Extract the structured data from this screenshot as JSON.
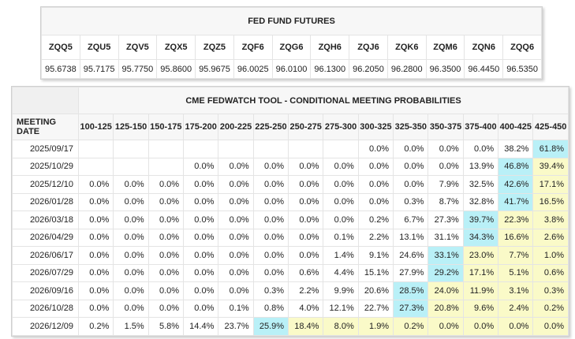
{
  "futures": {
    "title": "FED FUND FUTURES",
    "symbols": [
      "ZQQ5",
      "ZQU5",
      "ZQV5",
      "ZQX5",
      "ZQZ5",
      "ZQF6",
      "ZQG6",
      "ZQH6",
      "ZQJ6",
      "ZQK6",
      "ZQM6",
      "ZQN6",
      "ZQQ6"
    ],
    "prices": [
      "95.6738",
      "95.7175",
      "95.7750",
      "95.8600",
      "95.9675",
      "96.0025",
      "96.0100",
      "96.1300",
      "96.2050",
      "96.2800",
      "96.3500",
      "96.4450",
      "96.5350"
    ]
  },
  "probabilities": {
    "title": "CME FEDWATCH TOOL - CONDITIONAL MEETING PROBABILITIES",
    "date_header": "MEETING DATE",
    "ranges": [
      "100-125",
      "125-150",
      "150-175",
      "175-200",
      "200-225",
      "225-250",
      "250-275",
      "275-300",
      "300-325",
      "325-350",
      "350-375",
      "375-400",
      "400-425",
      "425-450"
    ],
    "rows": [
      {
        "date": "2025/09/17",
        "cells": [
          "",
          "",
          "",
          "",
          "",
          "",
          "",
          "",
          "0.0%",
          "0.0%",
          "0.0%",
          "0.0%",
          "38.2%",
          "61.8%"
        ],
        "max": 13,
        "hi": []
      },
      {
        "date": "2025/10/29",
        "cells": [
          "",
          "",
          "",
          "0.0%",
          "0.0%",
          "0.0%",
          "0.0%",
          "0.0%",
          "0.0%",
          "0.0%",
          "0.0%",
          "13.9%",
          "46.8%",
          "39.4%"
        ],
        "max": 12,
        "hi": [
          13
        ]
      },
      {
        "date": "2025/12/10",
        "cells": [
          "0.0%",
          "0.0%",
          "0.0%",
          "0.0%",
          "0.0%",
          "0.0%",
          "0.0%",
          "0.0%",
          "0.0%",
          "0.0%",
          "7.9%",
          "32.5%",
          "42.6%",
          "17.1%"
        ],
        "max": 12,
        "hi": [
          13
        ]
      },
      {
        "date": "2026/01/28",
        "cells": [
          "0.0%",
          "0.0%",
          "0.0%",
          "0.0%",
          "0.0%",
          "0.0%",
          "0.0%",
          "0.0%",
          "0.0%",
          "0.3%",
          "8.7%",
          "32.8%",
          "41.7%",
          "16.5%"
        ],
        "max": 12,
        "hi": [
          13
        ]
      },
      {
        "date": "2026/03/18",
        "cells": [
          "0.0%",
          "0.0%",
          "0.0%",
          "0.0%",
          "0.0%",
          "0.0%",
          "0.0%",
          "0.0%",
          "0.2%",
          "6.7%",
          "27.3%",
          "39.7%",
          "22.3%",
          "3.8%"
        ],
        "max": 11,
        "hi": [
          12,
          13
        ]
      },
      {
        "date": "2026/04/29",
        "cells": [
          "0.0%",
          "0.0%",
          "0.0%",
          "0.0%",
          "0.0%",
          "0.0%",
          "0.0%",
          "0.1%",
          "2.2%",
          "13.1%",
          "31.1%",
          "34.3%",
          "16.6%",
          "2.6%"
        ],
        "max": 11,
        "hi": [
          12,
          13
        ]
      },
      {
        "date": "2026/06/17",
        "cells": [
          "0.0%",
          "0.0%",
          "0.0%",
          "0.0%",
          "0.0%",
          "0.0%",
          "0.0%",
          "1.4%",
          "9.1%",
          "24.6%",
          "33.1%",
          "23.0%",
          "7.7%",
          "1.0%"
        ],
        "max": 10,
        "hi": [
          11,
          12,
          13
        ]
      },
      {
        "date": "2026/07/29",
        "cells": [
          "0.0%",
          "0.0%",
          "0.0%",
          "0.0%",
          "0.0%",
          "0.0%",
          "0.6%",
          "4.4%",
          "15.1%",
          "27.9%",
          "29.2%",
          "17.1%",
          "5.1%",
          "0.6%"
        ],
        "max": 10,
        "hi": [
          11,
          12,
          13
        ]
      },
      {
        "date": "2026/09/16",
        "cells": [
          "0.0%",
          "0.0%",
          "0.0%",
          "0.0%",
          "0.0%",
          "0.3%",
          "2.2%",
          "9.9%",
          "20.6%",
          "28.5%",
          "24.0%",
          "11.9%",
          "3.1%",
          "0.3%"
        ],
        "max": 9,
        "hi": [
          10,
          11,
          12,
          13
        ]
      },
      {
        "date": "2026/10/28",
        "cells": [
          "0.0%",
          "0.0%",
          "0.0%",
          "0.0%",
          "0.1%",
          "0.8%",
          "4.0%",
          "12.1%",
          "22.7%",
          "27.3%",
          "20.8%",
          "9.6%",
          "2.4%",
          "0.2%"
        ],
        "max": 9,
        "hi": [
          10,
          11,
          12,
          13
        ]
      },
      {
        "date": "2026/12/09",
        "cells": [
          "0.2%",
          "1.5%",
          "5.8%",
          "14.4%",
          "23.7%",
          "25.9%",
          "18.4%",
          "8.0%",
          "1.9%",
          "0.2%",
          "0.0%",
          "0.0%",
          "0.0%",
          "0.0%"
        ],
        "max": 5,
        "hi": [
          6,
          7,
          8,
          9,
          10,
          11,
          12,
          13
        ]
      }
    ]
  },
  "colors": {
    "max_highlight": "#b9f0f7",
    "above_max_highlight": "#fafac8"
  }
}
